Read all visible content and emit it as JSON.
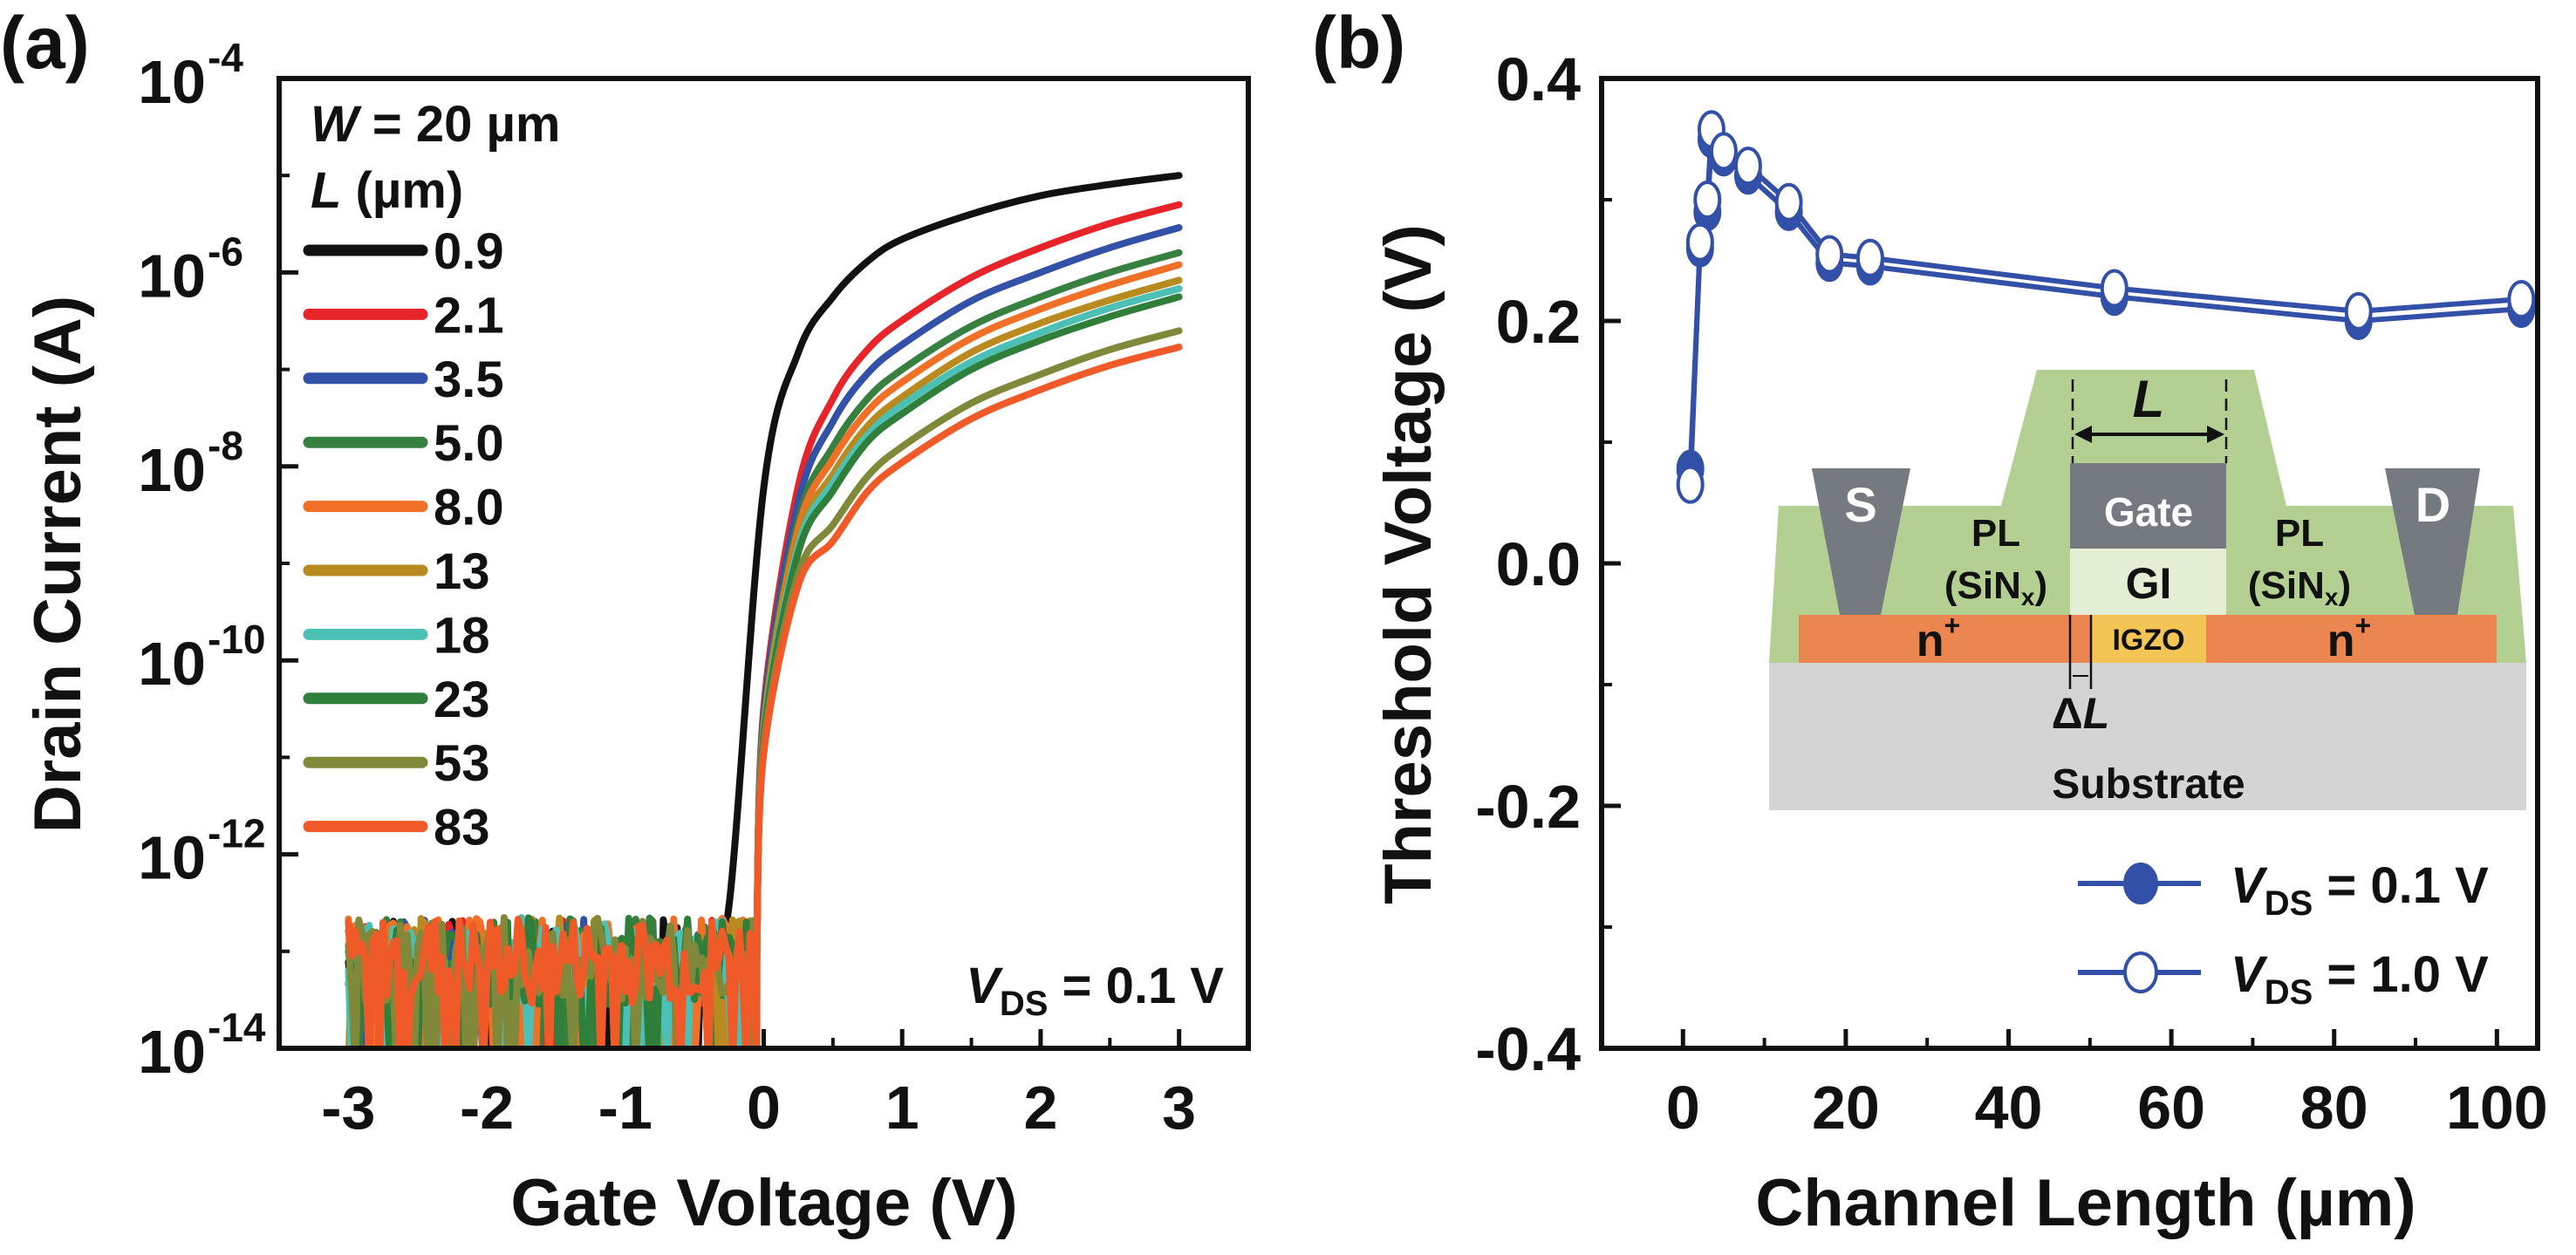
{
  "chart_data": [
    {
      "panel_label": "(a)",
      "type": "line",
      "xlabel": "Gate Voltage (V)",
      "ylabel": "Drain Current (A)",
      "xscale": "linear",
      "yscale": "log",
      "xlim": [
        -3.5,
        3.5
      ],
      "ylim": [
        1e-14,
        0.0001
      ],
      "grid": false,
      "xticks": [
        -3,
        -2,
        -1,
        0,
        1,
        2,
        3
      ],
      "xtick_labels": [
        "-3",
        "-2",
        "-1",
        "0",
        "1",
        "2",
        "3"
      ],
      "yticks": [
        0.0001,
        1e-06,
        1e-08,
        1e-10,
        1e-12,
        1e-14
      ],
      "ytick_labels": [
        {
          "base": "10",
          "exp": "-4"
        },
        {
          "base": "10",
          "exp": "-6"
        },
        {
          "base": "10",
          "exp": "-8"
        },
        {
          "base": "10",
          "exp": "-10"
        },
        {
          "base": "10",
          "exp": "-12"
        },
        {
          "base": "10",
          "exp": "-14"
        }
      ],
      "legend": {
        "placement": "top-left",
        "header": [
          {
            "var": "W",
            "text": " = 20 µm"
          },
          {
            "var": "L",
            "text": " (µm)"
          }
        ]
      },
      "annotation": {
        "var": "V",
        "sub": "DS",
        "text": " = 0.1 V"
      },
      "x": [
        -3,
        -2,
        -1,
        -0.5,
        -0.25,
        0,
        0.25,
        0.5,
        0.75,
        1,
        1.5,
        2,
        2.5,
        3
      ],
      "series": [
        {
          "name": "0.9",
          "color": "#111111",
          "values": [
            1e-13,
            1e-13,
            1e-13,
            1e-13,
            3e-13,
            6e-09,
            1.5e-07,
            5.6e-07,
            1.3e-06,
            2.2e-06,
            4e-06,
            6.2e-06,
            8.1e-06,
            1e-05
          ]
        },
        {
          "name": "2.1",
          "color": "#e8242b",
          "values": [
            1e-13,
            1e-13,
            1e-13,
            1e-13,
            1e-13,
            3.2e-11,
            6.3e-09,
            5e-08,
            1.6e-07,
            3.2e-07,
            8.9e-07,
            1.8e-06,
            3.2e-06,
            5e-06
          ]
        },
        {
          "name": "3.5",
          "color": "#3451a8",
          "values": [
            1e-13,
            1e-13,
            1e-13,
            1e-13,
            1e-13,
            2.7e-11,
            4.3e-09,
            2.9e-08,
            9.1e-08,
            1.8e-07,
            5.1e-07,
            1e-06,
            1.8e-06,
            2.9e-06
          ]
        },
        {
          "name": "5.0",
          "color": "#378040",
          "values": [
            1e-13,
            1e-13,
            1e-13,
            1e-13,
            1e-13,
            2.2e-11,
            2.8e-09,
            1.6e-08,
            5e-08,
            1e-07,
            2.8e-07,
            5.6e-07,
            1e-06,
            1.6e-06
          ]
        },
        {
          "name": "8.0",
          "color": "#f07028",
          "values": [
            1e-13,
            1e-13,
            1e-13,
            1e-13,
            1e-13,
            2e-11,
            2.3e-09,
            1.2e-08,
            3.7e-08,
            7.4e-08,
            2.1e-07,
            4.2e-07,
            7.4e-07,
            1.2e-06
          ]
        },
        {
          "name": "13",
          "color": "#b88a20",
          "values": [
            1e-13,
            1e-13,
            1e-13,
            1e-13,
            1e-13,
            1.9e-11,
            1.8e-09,
            8.3e-09,
            2.6e-08,
            5.2e-08,
            1.5e-07,
            3e-07,
            5.2e-07,
            8.3e-07
          ]
        },
        {
          "name": "18",
          "color": "#4cc0b4",
          "values": [
            1e-13,
            1e-13,
            1e-13,
            1e-13,
            1e-13,
            1.7e-11,
            1.5e-09,
            6.8e-09,
            2.1e-08,
            4.3e-08,
            1.2e-07,
            2.4e-07,
            4.3e-07,
            6.8e-07
          ]
        },
        {
          "name": "23",
          "color": "#2f7f3a",
          "values": [
            1e-13,
            1e-13,
            1e-13,
            1e-13,
            1e-13,
            1.6e-11,
            1.3e-09,
            5.6e-09,
            1.8e-08,
            3.5e-08,
            1e-07,
            2e-07,
            3.5e-07,
            5.6e-07
          ]
        },
        {
          "name": "53",
          "color": "#80883a",
          "values": [
            1e-13,
            1e-13,
            1e-13,
            1e-13,
            1e-13,
            1.3e-11,
            7.8e-10,
            2.5e-09,
            7.9e-09,
            1.6e-08,
            4.5e-08,
            8.9e-08,
            1.6e-07,
            2.5e-07
          ]
        },
        {
          "name": "83",
          "color": "#f05a28",
          "values": [
            1e-13,
            1e-13,
            1e-13,
            1e-13,
            1e-13,
            1.1e-11,
            6e-10,
            1.7e-09,
            5.5e-09,
            1.1e-08,
            3.1e-08,
            6.2e-08,
            1.1e-07,
            1.7e-07
          ]
        }
      ]
    },
    {
      "panel_label": "(b)",
      "type": "scatter",
      "xlabel": "Channel Length (µm)",
      "ylabel": "Threshold Voltage (V)",
      "xscale": "linear",
      "yscale": "linear",
      "xlim": [
        -10,
        105
      ],
      "ylim": [
        -0.4,
        0.4
      ],
      "grid": false,
      "xticks": [
        0,
        20,
        40,
        60,
        80,
        100
      ],
      "xtick_labels": [
        "0",
        "20",
        "40",
        "60",
        "80",
        "100"
      ],
      "yticks": [
        0.4,
        0.2,
        0.0,
        -0.2,
        -0.4
      ],
      "ytick_labels": [
        "0.4",
        "0.2",
        "0.0",
        "-0.2",
        "-0.4"
      ],
      "legend": {
        "placement": "bottom-right"
      },
      "x": [
        0.9,
        2.1,
        3.0,
        3.5,
        5.0,
        8.0,
        13,
        18,
        23,
        53,
        83,
        103
      ],
      "series": [
        {
          "label": {
            "var": "V",
            "sub": "DS",
            "text": " = 0.1 V"
          },
          "marker": "filled-circle",
          "color": "#3350a8",
          "values": [
            0.078,
            0.26,
            0.29,
            0.35,
            0.335,
            0.32,
            0.29,
            0.248,
            0.245,
            0.22,
            0.2,
            0.21
          ]
        },
        {
          "label": {
            "var": "V",
            "sub": "DS",
            "text": " = 1.0 V"
          },
          "marker": "open-circle",
          "color": "#3350a8",
          "values": [
            0.065,
            0.265,
            0.3,
            0.358,
            0.34,
            0.328,
            0.298,
            0.255,
            0.252,
            0.227,
            0.208,
            0.218
          ]
        }
      ],
      "inset": {
        "source": "S",
        "drain": "D",
        "gate": "Gate",
        "gi": "GI",
        "pl": "PL",
        "pl_material": "(SiN",
        "pl_sub": "x",
        "pl_close": ")",
        "nplus": "n",
        "nplus_sup": "+",
        "channel": "IGZO",
        "length_var": "L",
        "delta": "Δ",
        "substrate": "Substrate",
        "colors": {
          "passivation": "#b3cf91",
          "electrode": "#757a80",
          "gi": "#e4eed4",
          "nplus": "#ec8650",
          "igzo": "#f2c555",
          "substrate": "#d4d4d4"
        }
      }
    }
  ]
}
